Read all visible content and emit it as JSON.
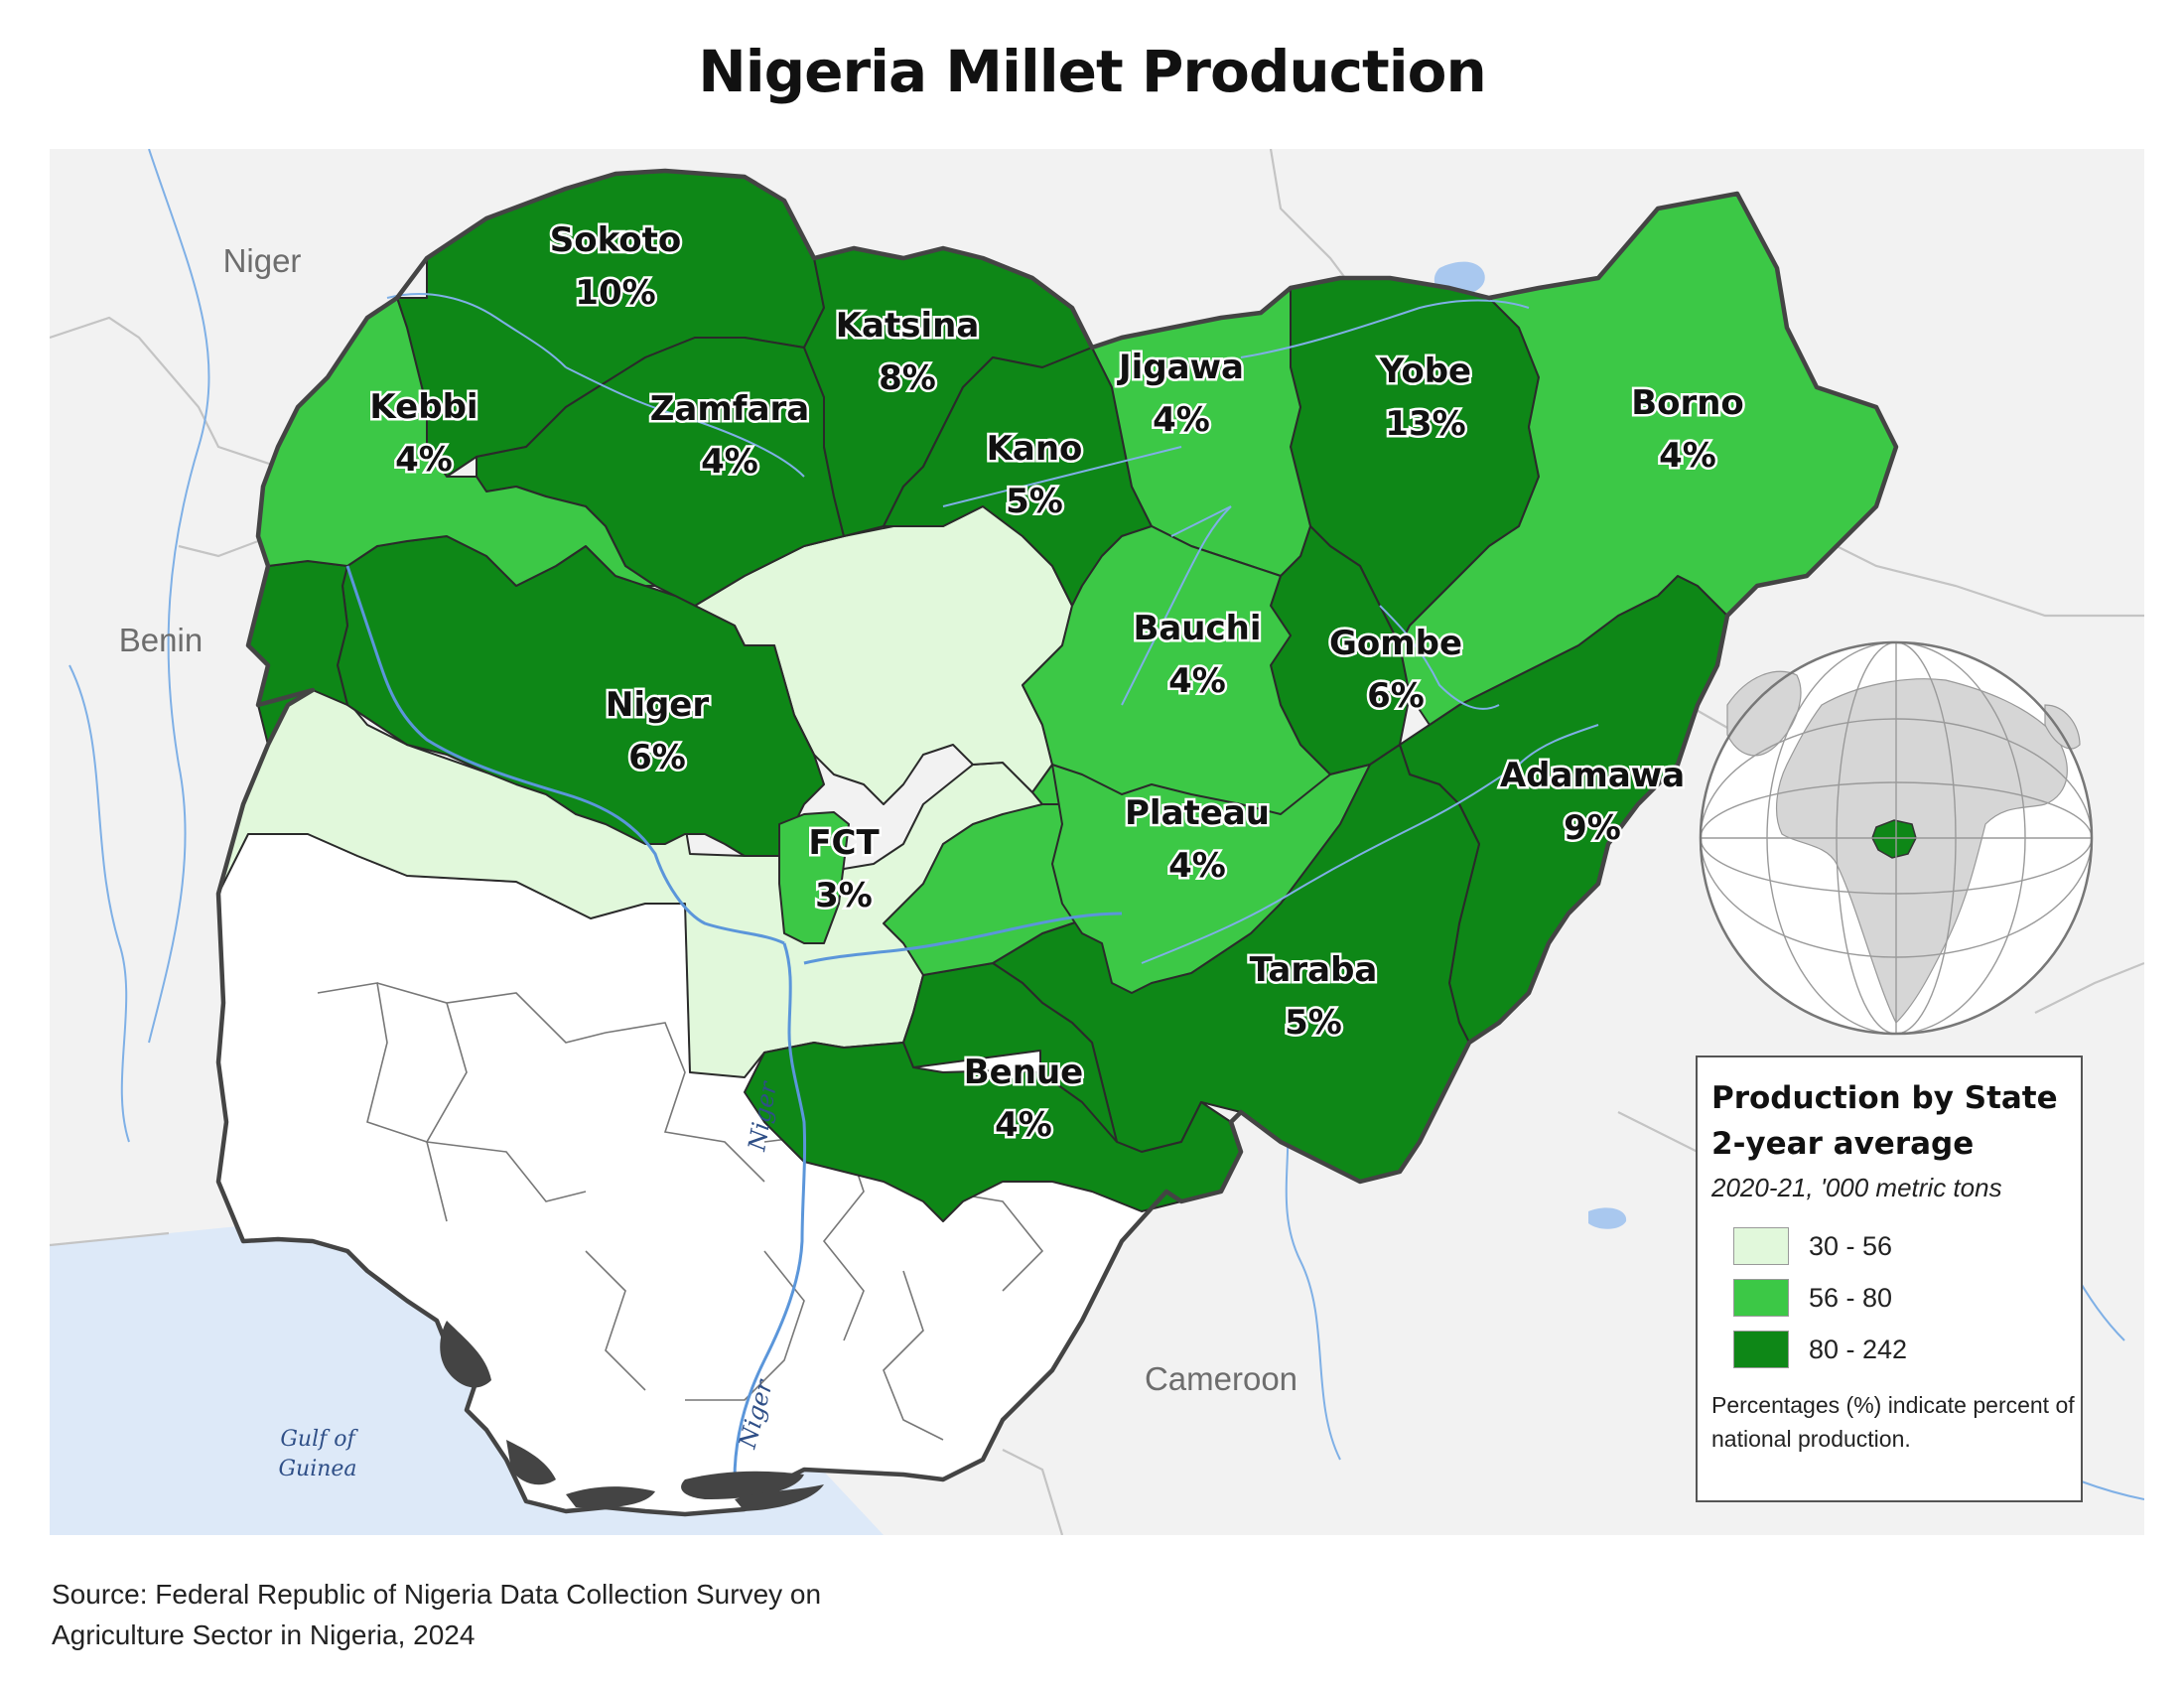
{
  "title": "Nigeria Millet Production",
  "colors": {
    "bin_low": "#e1f8db",
    "bin_mid": "#3cc846",
    "bin_high": "#0e8717",
    "no_data": "#ffffff",
    "background": "#f2f2f2",
    "water": "#dde9f8",
    "river": "#5b96da"
  },
  "countries": [
    "Niger",
    "Benin",
    "Cameroon"
  ],
  "water_bodies": {
    "gulf_line1": "Gulf of",
    "gulf_line2": "Guinea",
    "river_upper": "Niger",
    "river_lower": "Niger"
  },
  "states": [
    {
      "name": "Sokoto",
      "pct": "10%",
      "bin": "high"
    },
    {
      "name": "Kebbi",
      "pct": "4%",
      "bin": "mid"
    },
    {
      "name": "Zamfara",
      "pct": "4%",
      "bin": "high"
    },
    {
      "name": "Katsina",
      "pct": "8%",
      "bin": "high"
    },
    {
      "name": "Kano",
      "pct": "5%",
      "bin": "high"
    },
    {
      "name": "Jigawa",
      "pct": "4%",
      "bin": "mid"
    },
    {
      "name": "Yobe",
      "pct": "13%",
      "bin": "high"
    },
    {
      "name": "Borno",
      "pct": "4%",
      "bin": "mid"
    },
    {
      "name": "Bauchi",
      "pct": "4%",
      "bin": "mid"
    },
    {
      "name": "Gombe",
      "pct": "6%",
      "bin": "high"
    },
    {
      "name": "Niger",
      "pct": "6%",
      "bin": "high"
    },
    {
      "name": "Adamawa",
      "pct": "9%",
      "bin": "high"
    },
    {
      "name": "FCT",
      "pct": "3%",
      "bin": "mid"
    },
    {
      "name": "Plateau",
      "pct": "4%",
      "bin": "mid"
    },
    {
      "name": "Taraba",
      "pct": "5%",
      "bin": "high"
    },
    {
      "name": "Benue",
      "pct": "4%",
      "bin": "high"
    }
  ],
  "legend": {
    "title_line1": "Production by State",
    "title_line2": "2-year average",
    "unit": "2020-21, '000 metric tons",
    "items": [
      {
        "label": "30 - 56",
        "bin": "low"
      },
      {
        "label": "56 - 80",
        "bin": "mid"
      },
      {
        "label": "80 - 242",
        "bin": "high"
      }
    ],
    "note": "Percentages (%) indicate percent of national production."
  },
  "source_line1": "Source: Federal Republic of Nigeria Data Collection Survey on",
  "source_line2": "Agriculture Sector in Nigeria, 2024"
}
